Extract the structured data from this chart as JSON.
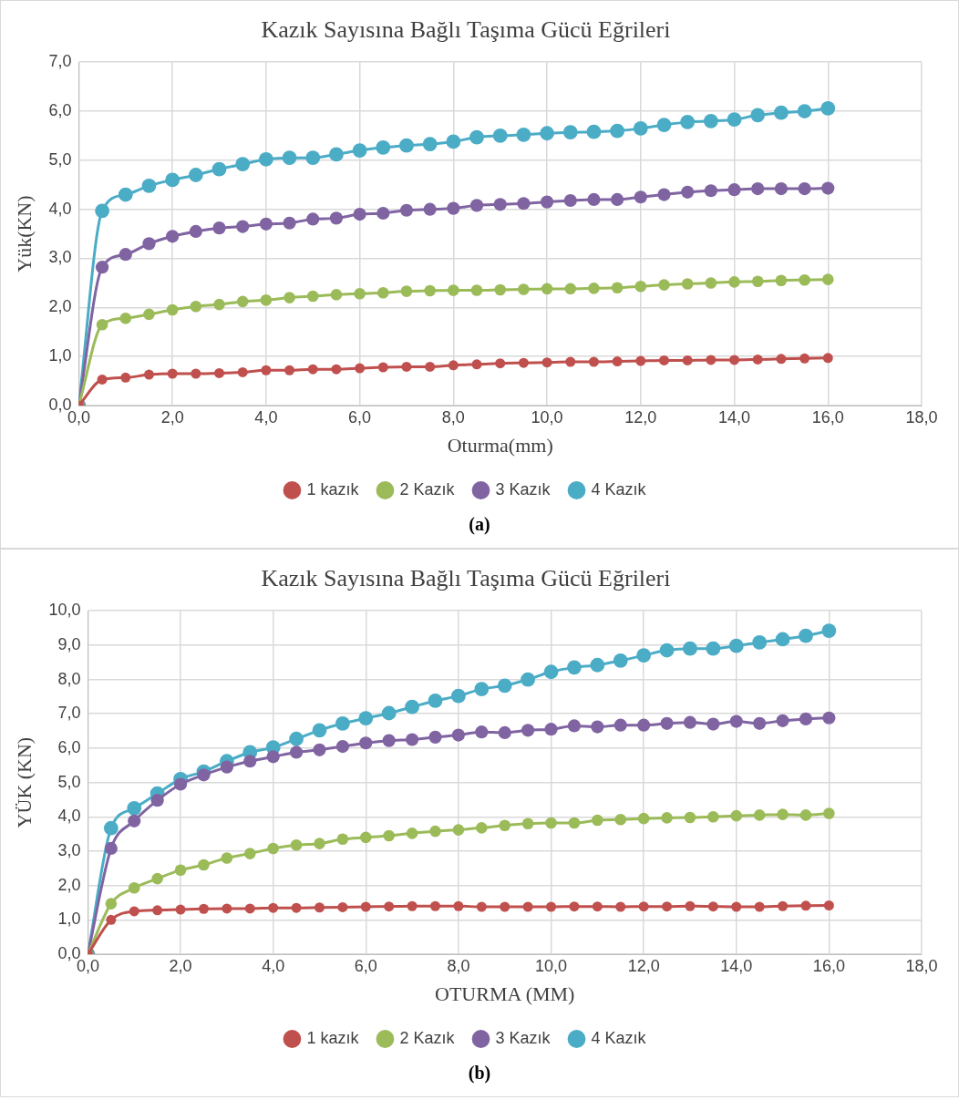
{
  "chart_data": [
    {
      "type": "line",
      "title": "Kazık Sayısına Bağlı Taşıma Gücü Eğrileri",
      "xlabel": "Oturma(mm)",
      "ylabel": "Yük(KN)",
      "annotations": [
        "(a)"
      ],
      "x": [
        0,
        0.5,
        1,
        1.5,
        2,
        2.5,
        3,
        3.5,
        4,
        4.5,
        5,
        5.5,
        6,
        6.5,
        7,
        7.5,
        8,
        8.5,
        9,
        9.5,
        10,
        10.5,
        11,
        11.5,
        12,
        12.5,
        13,
        13.5,
        14,
        14.5,
        15,
        15.5,
        16
      ],
      "series": [
        {
          "name": "1 kazık",
          "color": "#c0504d",
          "values": [
            0,
            0.53,
            0.57,
            0.63,
            0.65,
            0.65,
            0.66,
            0.68,
            0.72,
            0.72,
            0.74,
            0.74,
            0.76,
            0.78,
            0.79,
            0.79,
            0.82,
            0.84,
            0.86,
            0.87,
            0.88,
            0.89,
            0.89,
            0.9,
            0.91,
            0.92,
            0.92,
            0.93,
            0.93,
            0.94,
            0.95,
            0.96,
            0.97
          ]
        },
        {
          "name": "2 Kazık",
          "color": "#9bbb59",
          "values": [
            0,
            1.65,
            1.78,
            1.86,
            1.95,
            2.02,
            2.06,
            2.12,
            2.15,
            2.2,
            2.23,
            2.26,
            2.28,
            2.3,
            2.33,
            2.34,
            2.35,
            2.35,
            2.36,
            2.37,
            2.38,
            2.38,
            2.39,
            2.4,
            2.43,
            2.46,
            2.48,
            2.5,
            2.52,
            2.53,
            2.55,
            2.56,
            2.57
          ]
        },
        {
          "name": "3 Kazık",
          "color": "#8064a2",
          "values": [
            0,
            2.82,
            3.08,
            3.3,
            3.45,
            3.55,
            3.62,
            3.65,
            3.7,
            3.72,
            3.8,
            3.82,
            3.9,
            3.92,
            3.98,
            4.0,
            4.02,
            4.08,
            4.1,
            4.12,
            4.15,
            4.18,
            4.2,
            4.2,
            4.25,
            4.3,
            4.35,
            4.38,
            4.4,
            4.42,
            4.42,
            4.42,
            4.43
          ]
        },
        {
          "name": "4 Kazık",
          "color": "#4bacc6",
          "values": [
            0,
            3.97,
            4.3,
            4.48,
            4.6,
            4.7,
            4.82,
            4.92,
            5.02,
            5.05,
            5.05,
            5.12,
            5.2,
            5.26,
            5.3,
            5.33,
            5.38,
            5.47,
            5.5,
            5.52,
            5.55,
            5.57,
            5.58,
            5.6,
            5.65,
            5.72,
            5.78,
            5.8,
            5.83,
            5.92,
            5.97,
            6.0,
            6.06
          ]
        }
      ],
      "xlim": [
        0,
        18
      ],
      "xticks": [
        {
          "value": 0,
          "label": "0,0"
        },
        {
          "value": 2,
          "label": "2,0"
        },
        {
          "value": 4,
          "label": "4,0"
        },
        {
          "value": 6,
          "label": "6,0"
        },
        {
          "value": 8,
          "label": "8,0"
        },
        {
          "value": 10,
          "label": "10,0"
        },
        {
          "value": 12,
          "label": "12,0"
        },
        {
          "value": 14,
          "label": "14,0"
        },
        {
          "value": 16,
          "label": "16,0"
        },
        {
          "value": 18,
          "label": "18,0"
        }
      ],
      "ylim": [
        0,
        7
      ],
      "yticks": [
        {
          "value": 0,
          "label": "0,0"
        },
        {
          "value": 1,
          "label": "1,0"
        },
        {
          "value": 2,
          "label": "2,0"
        },
        {
          "value": 3,
          "label": "3,0"
        },
        {
          "value": 4,
          "label": "4,0"
        },
        {
          "value": 5,
          "label": "5,0"
        },
        {
          "value": 6,
          "label": "6,0"
        },
        {
          "value": 7,
          "label": "7,0"
        }
      ],
      "grid": true,
      "legend": "bottom",
      "marker": "circle",
      "line_style": "solid"
    },
    {
      "type": "line",
      "title": "Kazık Sayısına Bağlı Taşıma Gücü Eğrileri",
      "xlabel": "OTURMA (MM)",
      "ylabel": "YÜK (KN)",
      "annotations": [
        "(b)"
      ],
      "x": [
        0,
        0.5,
        1,
        1.5,
        2,
        2.5,
        3,
        3.5,
        4,
        4.5,
        5,
        5.5,
        6,
        6.5,
        7,
        7.5,
        8,
        8.5,
        9,
        9.5,
        10,
        10.5,
        11,
        11.5,
        12,
        12.5,
        13,
        13.5,
        14,
        14.5,
        15,
        15.5,
        16
      ],
      "series": [
        {
          "name": "1 kazık",
          "color": "#c0504d",
          "values": [
            0,
            1.0,
            1.25,
            1.28,
            1.3,
            1.32,
            1.33,
            1.33,
            1.35,
            1.35,
            1.36,
            1.37,
            1.38,
            1.39,
            1.4,
            1.4,
            1.4,
            1.38,
            1.38,
            1.38,
            1.38,
            1.39,
            1.39,
            1.38,
            1.39,
            1.39,
            1.4,
            1.39,
            1.38,
            1.38,
            1.4,
            1.41,
            1.42
          ]
        },
        {
          "name": "2 Kazık",
          "color": "#9bbb59",
          "values": [
            0,
            1.47,
            1.93,
            2.2,
            2.45,
            2.6,
            2.8,
            2.93,
            3.08,
            3.18,
            3.22,
            3.35,
            3.4,
            3.45,
            3.52,
            3.58,
            3.62,
            3.68,
            3.75,
            3.8,
            3.82,
            3.82,
            3.9,
            3.92,
            3.95,
            3.97,
            3.98,
            4.0,
            4.03,
            4.05,
            4.07,
            4.05,
            4.1
          ]
        },
        {
          "name": "3 Kazık",
          "color": "#8064a2",
          "values": [
            0,
            3.08,
            3.88,
            4.48,
            4.95,
            5.22,
            5.45,
            5.62,
            5.75,
            5.88,
            5.95,
            6.05,
            6.15,
            6.22,
            6.25,
            6.32,
            6.38,
            6.47,
            6.45,
            6.52,
            6.55,
            6.65,
            6.62,
            6.67,
            6.67,
            6.72,
            6.75,
            6.7,
            6.78,
            6.72,
            6.8,
            6.85,
            6.88
          ]
        },
        {
          "name": "4 Kazık",
          "color": "#4bacc6",
          "values": [
            0,
            3.67,
            4.25,
            4.68,
            5.1,
            5.32,
            5.62,
            5.88,
            6.02,
            6.27,
            6.52,
            6.72,
            6.87,
            7.02,
            7.2,
            7.38,
            7.52,
            7.72,
            7.82,
            8.0,
            8.22,
            8.35,
            8.42,
            8.55,
            8.7,
            8.85,
            8.9,
            8.9,
            8.98,
            9.08,
            9.17,
            9.27,
            9.42
          ]
        }
      ],
      "xlim": [
        0,
        18
      ],
      "xticks": [
        {
          "value": 0,
          "label": "0,0"
        },
        {
          "value": 2,
          "label": "2,0"
        },
        {
          "value": 4,
          "label": "4,0"
        },
        {
          "value": 6,
          "label": "6,0"
        },
        {
          "value": 8,
          "label": "8,0"
        },
        {
          "value": 10,
          "label": "10,0"
        },
        {
          "value": 12,
          "label": "12,0"
        },
        {
          "value": 14,
          "label": "14,0"
        },
        {
          "value": 16,
          "label": "16,0"
        },
        {
          "value": 18,
          "label": "18,0"
        }
      ],
      "ylim": [
        0,
        10
      ],
      "yticks": [
        {
          "value": 0,
          "label": "0,0"
        },
        {
          "value": 1,
          "label": "1,0"
        },
        {
          "value": 2,
          "label": "2,0"
        },
        {
          "value": 3,
          "label": "3,0"
        },
        {
          "value": 4,
          "label": "4,0"
        },
        {
          "value": 5,
          "label": "5,0"
        },
        {
          "value": 6,
          "label": "6,0"
        },
        {
          "value": 7,
          "label": "7,0"
        },
        {
          "value": 8,
          "label": "8,0"
        },
        {
          "value": 9,
          "label": "9,0"
        },
        {
          "value": 10,
          "label": "10,0"
        }
      ],
      "grid": true,
      "legend": "bottom",
      "marker": "circle",
      "line_style": "solid"
    }
  ]
}
